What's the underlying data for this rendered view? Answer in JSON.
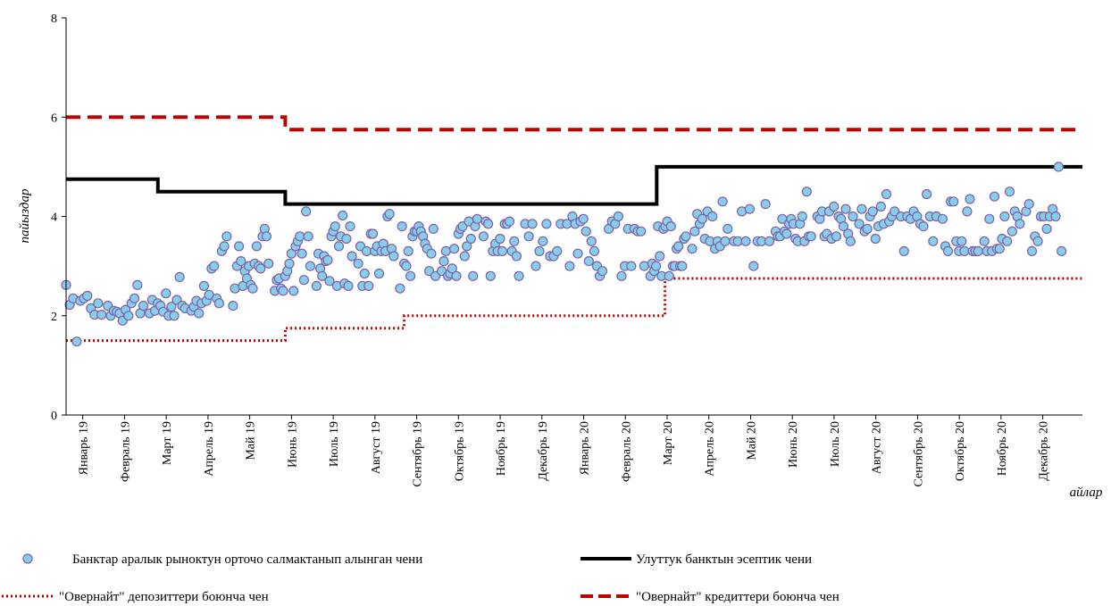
{
  "chart_data": {
    "type": "line",
    "ylabel": "пайыздар",
    "xlabel": "айлар",
    "ylim": [
      0,
      8
    ],
    "yticks": [
      0,
      2,
      4,
      6,
      8
    ],
    "x_domain": [
      -0.4,
      23.95
    ],
    "months": [
      "Январь 19",
      "Февраль 19",
      "Март 19",
      "Апрель 19",
      "Май 19",
      "Июнь 19",
      "Июль 19",
      "Август 19",
      "Сентябрь 19",
      "Октябрь 19",
      "Ноябрь 19",
      "Декабрь 19",
      "Январь 20",
      "Февраль 20",
      "Март 20",
      "Апрель 20",
      "Май 20",
      "Июнь 20",
      "Июль 20",
      "Август 20",
      "Сентябрь 20",
      "Октябрь 20",
      "Ноябрь 20",
      "Декабрь 20"
    ],
    "grid": false,
    "legend_position": "bottom",
    "series": [
      {
        "name": "Банктар аралык рыноктун орточо салмактанып  алынган чени",
        "style": "markers",
        "color": "#87CEEB",
        "edge_color": "#8060A8",
        "monthly": [
          [
            2.62,
            2.22,
            2.35,
            1.48,
            2.3,
            2.35,
            2.4,
            2.15,
            2.02,
            2.25,
            2.02
          ],
          [
            2.2,
            2.0,
            2.1,
            2.08,
            2.05,
            1.9,
            2.12,
            2.0,
            2.25,
            2.35,
            2.62,
            2.05,
            2.2
          ],
          [
            2.05,
            2.32,
            2.1,
            2.25,
            2.2,
            2.08,
            2.45,
            2.0,
            2.18,
            2.0,
            2.32,
            2.78,
            2.2,
            2.15
          ],
          [
            2.1,
            2.18,
            2.3,
            2.05,
            2.25,
            2.6,
            2.3,
            2.42,
            2.95,
            3.0,
            2.35,
            2.25,
            3.3,
            3.4,
            3.6
          ],
          [
            2.2,
            2.55,
            3.0,
            3.4,
            3.1,
            2.6,
            2.9,
            2.75,
            3.0,
            2.62,
            2.55,
            3.05,
            3.4,
            3.0,
            2.95,
            3.6,
            3.75,
            3.6,
            3.05
          ],
          [
            2.5,
            2.72,
            2.75,
            2.55,
            2.5,
            2.8,
            2.9,
            3.05,
            3.25,
            2.5,
            3.4,
            3.5,
            3.6,
            3.25,
            2.72,
            4.1,
            3.6,
            3.0
          ],
          [
            2.6,
            3.25,
            2.95,
            2.8,
            3.2,
            3.1,
            3.12,
            2.7,
            3.6,
            3.7,
            3.8,
            2.6,
            3.4,
            3.6,
            4.02,
            2.65,
            3.55,
            2.6,
            3.8,
            3.2
          ],
          [
            3.05,
            3.4,
            2.6,
            2.85,
            3.3,
            2.6,
            3.65,
            3.65,
            3.3,
            3.4,
            2.85,
            3.3,
            3.45,
            3.3,
            4.0,
            4.05,
            3.35,
            3.2
          ],
          [
            2.55,
            3.8,
            3.05,
            3.0,
            3.3,
            2.8,
            3.6,
            3.7,
            3.7,
            3.8,
            3.7,
            3.6,
            3.45,
            3.35,
            2.9,
            3.25,
            3.75,
            2.8
          ],
          [
            2.9,
            3.1,
            3.3,
            2.8,
            2.85,
            2.95,
            3.35,
            2.8,
            3.65,
            3.75,
            3.8,
            3.2,
            3.4,
            3.9,
            3.55,
            2.8,
            3.8,
            3.95
          ],
          [
            3.6,
            3.9,
            3.85,
            2.8,
            3.3,
            3.45,
            3.3,
            3.55,
            3.3,
            3.85,
            3.85,
            3.9,
            3.3,
            3.5,
            3.2,
            2.8
          ],
          [
            3.85,
            3.6,
            3.85,
            3.0,
            3.3,
            3.5,
            3.85,
            3.2,
            3.2,
            3.3,
            3.85
          ],
          [
            3.85,
            3.0,
            4.0,
            3.85,
            3.25,
            3.9,
            3.95,
            3.7,
            3.1,
            3.5,
            3.3,
            3.0,
            2.8,
            2.9
          ],
          [
            3.75,
            3.9,
            3.85,
            4.0,
            2.8,
            3.0,
            3.75,
            3.0,
            3.75,
            3.7,
            3.7,
            3.0
          ],
          [
            2.8,
            3.05,
            2.9,
            3.0,
            3.8,
            3.2,
            2.8,
            3.75,
            3.8,
            3.9,
            2.8,
            3.8,
            3.0,
            3.0,
            3.35,
            3.4,
            3.0,
            3.0,
            3.55,
            3.6
          ],
          [
            3.35,
            3.7,
            4.05,
            3.85,
            3.95,
            3.55,
            4.1,
            3.5,
            4.0,
            3.35,
            3.5,
            3.4,
            4.3,
            3.5,
            3.75
          ],
          [
            3.5,
            3.5,
            4.1,
            3.5,
            4.15,
            3.0,
            3.5,
            3.5,
            4.25,
            3.5
          ],
          [
            3.7,
            3.6,
            3.6,
            3.95,
            3.7,
            3.65,
            3.85,
            3.95,
            3.85,
            3.55,
            3.5,
            3.85,
            4.0,
            3.5,
            4.5,
            3.6,
            3.6
          ],
          [
            4.0,
            3.95,
            4.1,
            3.6,
            3.65,
            4.1,
            3.55,
            4.2,
            3.6,
            4.0,
            3.95,
            3.8,
            4.15,
            3.65,
            3.5,
            4.0
          ],
          [
            3.85,
            4.15,
            3.7,
            3.75,
            4.0,
            4.1,
            3.55,
            3.8,
            4.2,
            3.85,
            4.45,
            3.9,
            4.0,
            4.1
          ],
          [
            4.0,
            3.3,
            4.0,
            3.95,
            4.1,
            4.0,
            3.85,
            3.8,
            4.45,
            4.0,
            3.5,
            4.0
          ],
          [
            3.95,
            3.4,
            3.3,
            4.3,
            4.3,
            3.5,
            3.3,
            3.5,
            3.3,
            4.1,
            4.35,
            3.3,
            3.3,
            3.3
          ],
          [
            3.5,
            3.3,
            3.95,
            3.3,
            4.4,
            3.35,
            3.35,
            3.55,
            4.0,
            3.5,
            4.5,
            3.7,
            4.1,
            4.0,
            3.85
          ],
          [
            4.1,
            4.25,
            3.3,
            3.6,
            3.5,
            4.0,
            4.0,
            3.75,
            4.0,
            4.15,
            4.0,
            5.0,
            3.3
          ]
        ]
      },
      {
        "name": "Улуттук банктын эсептик чени",
        "style": "solid",
        "color": "#000000",
        "steps": [
          [
            -0.4,
            4.75
          ],
          [
            1.8,
            4.5
          ],
          [
            4.85,
            4.25
          ],
          [
            13.75,
            5.0
          ],
          [
            23.95,
            5.0
          ]
        ]
      },
      {
        "name": "\"Овернайт\" депозиттери боюнча чен",
        "style": "dotted",
        "color": "#C00000",
        "steps": [
          [
            -0.4,
            1.5
          ],
          [
            4.85,
            1.75
          ],
          [
            7.7,
            2.0
          ],
          [
            13.95,
            2.75
          ],
          [
            23.95,
            2.75
          ]
        ]
      },
      {
        "name": "\"Овернайт\" кредиттери боюнча чен",
        "style": "dashed",
        "color": "#C00000",
        "steps": [
          [
            -0.4,
            6.0
          ],
          [
            4.85,
            5.75
          ],
          [
            23.95,
            5.75
          ]
        ]
      }
    ]
  }
}
